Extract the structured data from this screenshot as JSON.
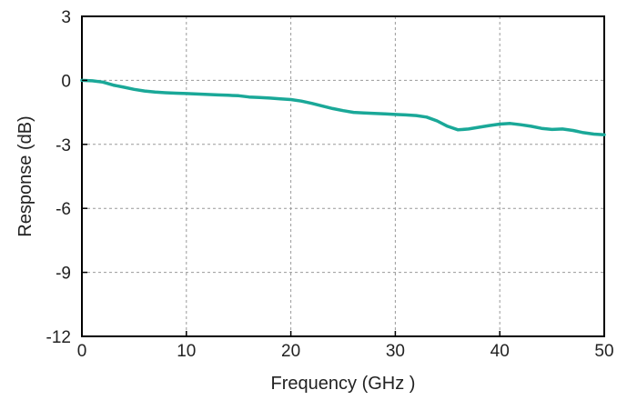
{
  "chart_data": {
    "type": "line",
    "xlabel": "Frequency (GHz )",
    "ylabel": "Response (dB)",
    "xlim": [
      0,
      50
    ],
    "ylim": [
      -12,
      3
    ],
    "xticks": [
      0,
      10,
      20,
      30,
      40,
      50
    ],
    "yticks": [
      3,
      0,
      -3,
      -6,
      -9,
      -12
    ],
    "xtick_labels": [
      "0",
      "10",
      "20",
      "30",
      "40",
      "50"
    ],
    "ytick_labels": [
      "3",
      "0",
      "-3",
      "-6",
      "-9",
      "-12"
    ],
    "grid": true,
    "line_color": "#1aa898",
    "series": [
      {
        "x": [
          0,
          1,
          2,
          3,
          4,
          5,
          6,
          7,
          8,
          9,
          10,
          11,
          12,
          13,
          14,
          15,
          16,
          17,
          18,
          19,
          20,
          21,
          22,
          23,
          24,
          25,
          26,
          27,
          28,
          29,
          30,
          31,
          32,
          33,
          34,
          35,
          36,
          37,
          38,
          39,
          40,
          41,
          42,
          43,
          44,
          45,
          46,
          47,
          48,
          49,
          50
        ],
        "y": [
          0.0,
          -0.02,
          -0.08,
          -0.22,
          -0.32,
          -0.42,
          -0.5,
          -0.55,
          -0.58,
          -0.6,
          -0.62,
          -0.64,
          -0.66,
          -0.68,
          -0.7,
          -0.72,
          -0.78,
          -0.8,
          -0.83,
          -0.87,
          -0.9,
          -0.97,
          -1.08,
          -1.2,
          -1.32,
          -1.42,
          -1.5,
          -1.53,
          -1.55,
          -1.57,
          -1.6,
          -1.62,
          -1.65,
          -1.72,
          -1.9,
          -2.15,
          -2.32,
          -2.28,
          -2.2,
          -2.12,
          -2.05,
          -2.02,
          -2.08,
          -2.15,
          -2.25,
          -2.3,
          -2.28,
          -2.35,
          -2.45,
          -2.52,
          -2.55
        ]
      }
    ]
  }
}
